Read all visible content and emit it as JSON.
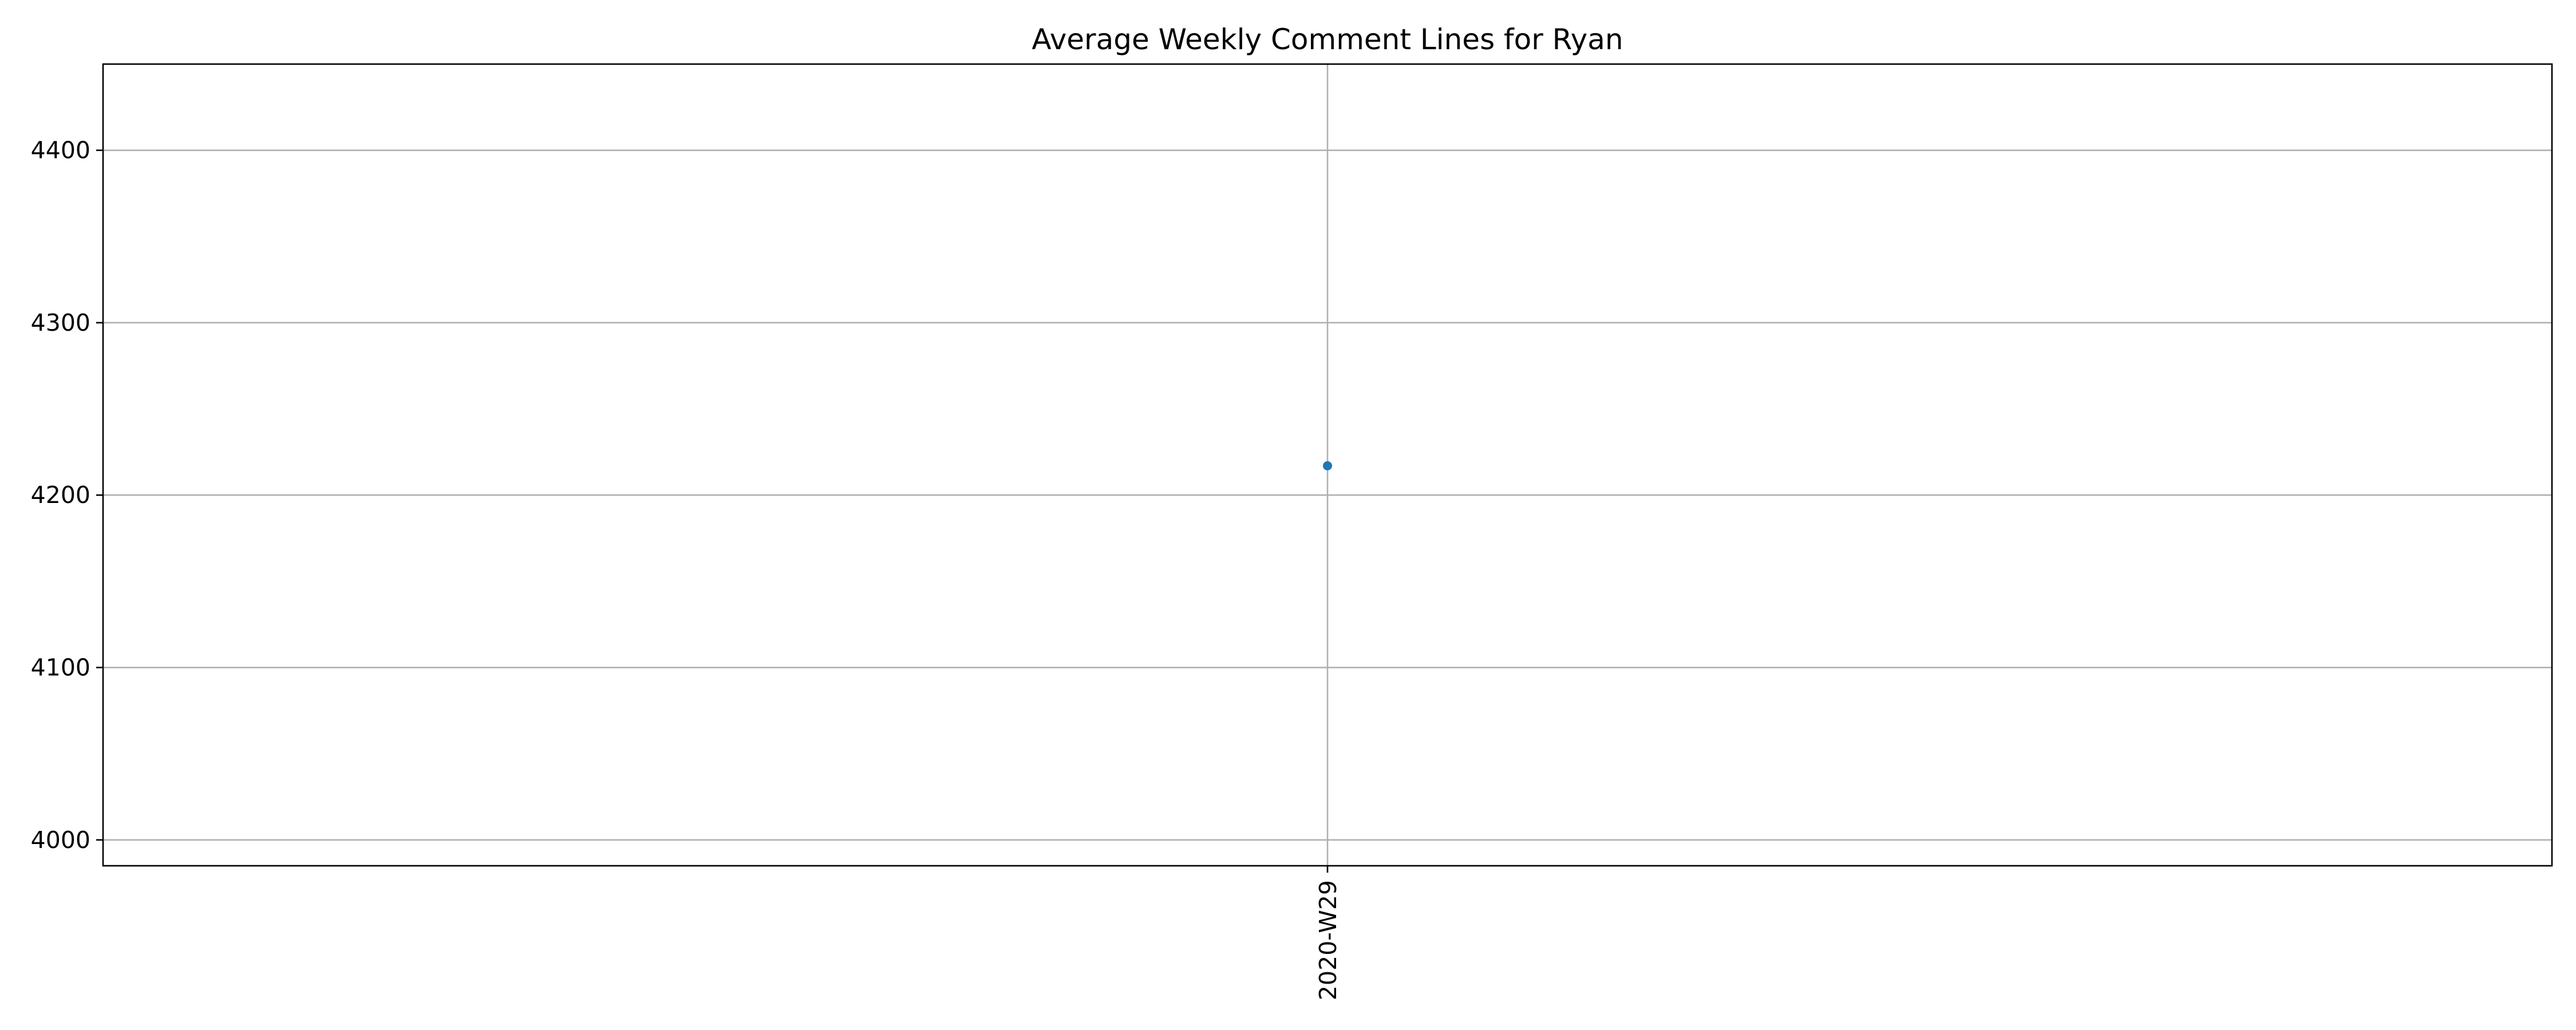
{
  "chart_data": {
    "type": "line",
    "title": "Average Weekly Comment Lines for Ryan",
    "xlabel": "",
    "ylabel": "",
    "categories": [
      "2020-W29"
    ],
    "series": [
      {
        "values": [
          4217
        ],
        "color": "#1f77b4"
      }
    ],
    "ylim": [
      3985,
      4450
    ],
    "yticks": [
      4000,
      4100,
      4200,
      4300,
      4400
    ],
    "ytick_labels": [
      "4000",
      "4100",
      "4200",
      "4300",
      "4400"
    ],
    "grid": true,
    "legend": "none"
  }
}
